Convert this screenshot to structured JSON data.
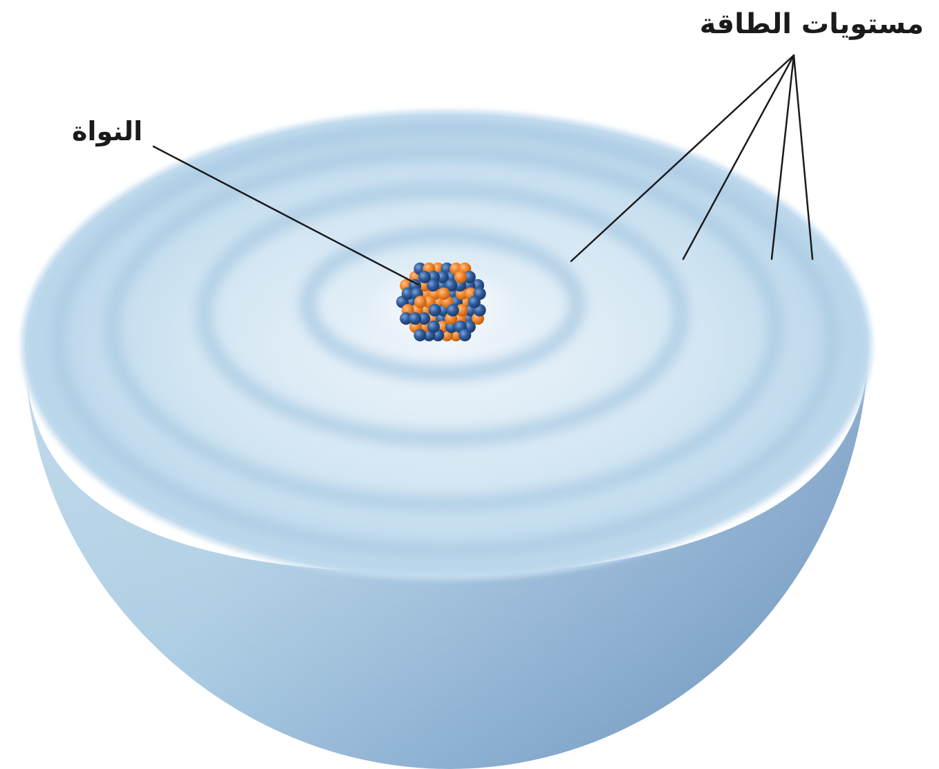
{
  "labels": {
    "energy_levels": "مستويات الطاقة",
    "nucleus": "النواة"
  },
  "colors": {
    "sphere_light": "#cfe3f1",
    "sphere_mid": "#9fc4de",
    "sphere_dark": "#7fa3c8",
    "ring_band": "#a9cbe4",
    "proton": "#f0852b",
    "neutron": "#2f5c9c",
    "leader_line": "#1a1a1a"
  },
  "energy_level_count": 4
}
